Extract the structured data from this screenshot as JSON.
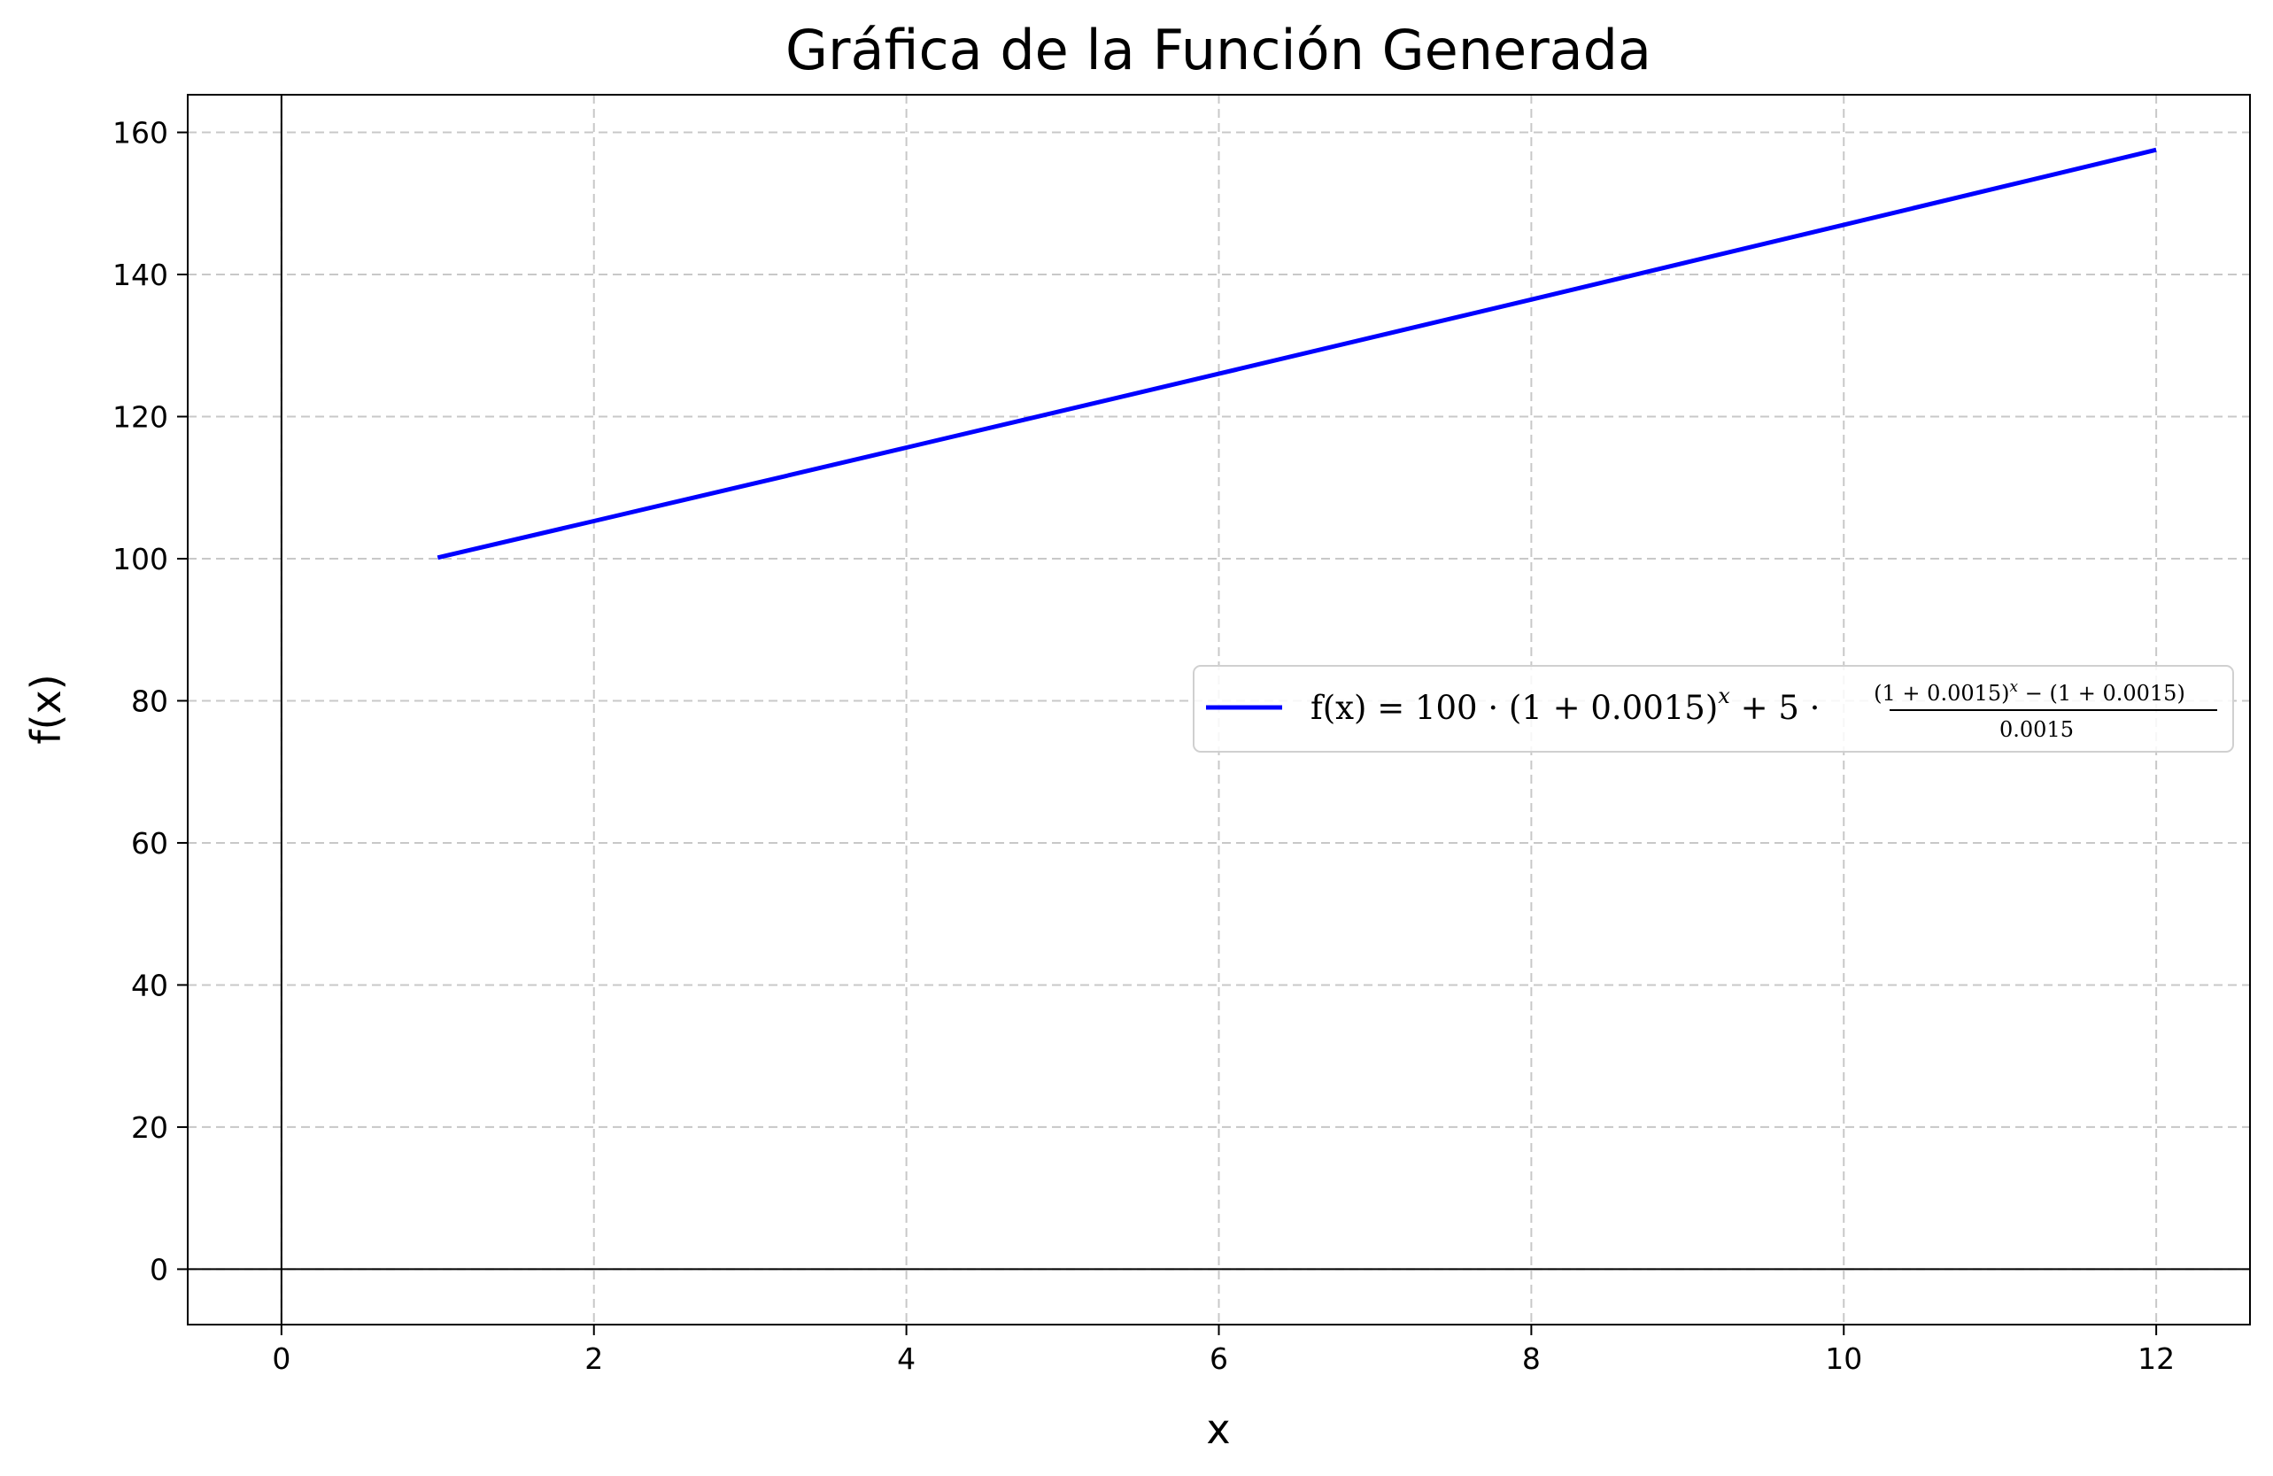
{
  "chart_data": {
    "type": "line",
    "title": "Gráfica de la Función Generada",
    "xlabel": "x",
    "ylabel": "f(x)",
    "xlim": [
      -0.6,
      12.6
    ],
    "ylim": [
      -7.8,
      165.3
    ],
    "xticks": [
      0,
      2,
      4,
      6,
      8,
      10,
      12
    ],
    "yticks": [
      0,
      20,
      40,
      60,
      80,
      100,
      120,
      140,
      160
    ],
    "grid": true,
    "legend_placement": "center-right",
    "series": [
      {
        "name": "f(x) = 100 · (1 + 0.0015)^x + 5 · ((1 + 0.0015)^x − (1 + 0.0015)) / 0.0015",
        "color": "#0000ff",
        "x": [
          1,
          2,
          3,
          4,
          5,
          6,
          7,
          8,
          9,
          10,
          11,
          12
        ],
        "y": [
          100.15,
          105.3,
          110.46,
          115.64,
          120.83,
          126.03,
          131.25,
          136.48,
          141.73,
          146.99,
          152.26,
          157.55
        ]
      }
    ],
    "legend": {
      "lhs": "f(x) = 100 · (1 + 0.0015)",
      "exp": "x",
      "mid": " + 5 ·",
      "num": "(1 + 0.0015)",
      "num_exp": "x",
      "num_rest": " − (1 + 0.0015)",
      "den": "0.0015"
    }
  }
}
